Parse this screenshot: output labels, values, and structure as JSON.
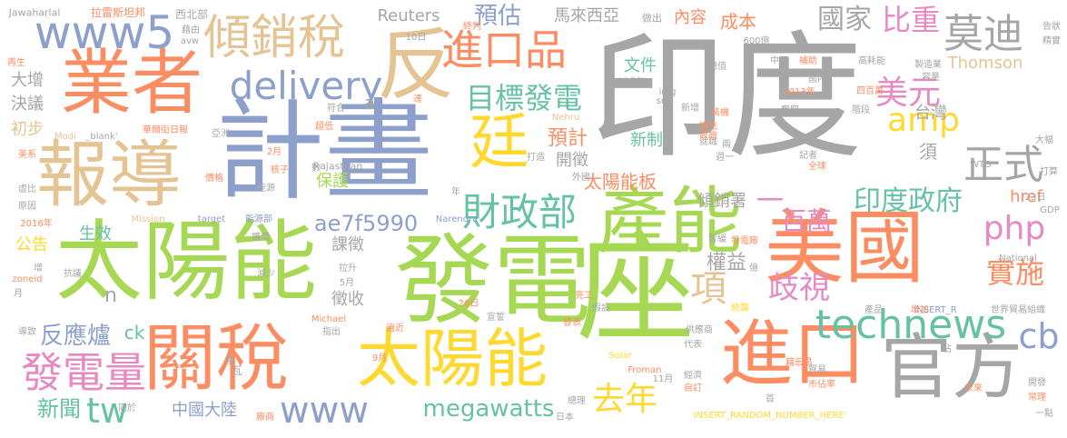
{
  "palette": {
    "gray": "#a6a6a6",
    "blue": "#8da0cb",
    "orange": "#fc8d62",
    "green": "#a6d854",
    "yellow": "#ffd92f",
    "tan": "#e5c494",
    "pink": "#e78ac3",
    "teal": "#66c2a5"
  },
  "words": [
    {
      "text": "印度",
      "color": "gray"
    },
    {
      "text": "計畫",
      "color": "blue"
    },
    {
      "text": "發電",
      "color": "green"
    },
    {
      "text": "太陽能",
      "color": "green"
    },
    {
      "text": "座",
      "color": "green"
    },
    {
      "text": "產能",
      "color": "green"
    },
    {
      "text": "美國",
      "color": "orange"
    },
    {
      "text": "業者",
      "color": "orange"
    },
    {
      "text": "報導",
      "color": "tan"
    },
    {
      "text": "反",
      "color": "tan"
    },
    {
      "text": "關稅",
      "color": "orange"
    },
    {
      "text": "太陽能",
      "color": "yellow"
    },
    {
      "text": "進口",
      "color": "orange"
    },
    {
      "text": "官方",
      "color": "gray"
    },
    {
      "text": "廷",
      "color": "yellow"
    },
    {
      "text": "www5",
      "color": "blue"
    },
    {
      "text": "傾銷稅",
      "color": "tan"
    },
    {
      "text": "進口品",
      "color": "orange"
    },
    {
      "text": "delivery",
      "color": "blue"
    },
    {
      "text": "目標發電",
      "color": "teal"
    },
    {
      "text": "財政部",
      "color": "teal"
    },
    {
      "text": "technews",
      "color": "teal"
    },
    {
      "text": "www",
      "color": "blue"
    },
    {
      "text": "發電量",
      "color": "pink"
    },
    {
      "text": "tw",
      "color": "teal"
    },
    {
      "text": "比重",
      "color": "pink"
    },
    {
      "text": "莫迪",
      "color": "gray"
    },
    {
      "text": "美元",
      "color": "pink"
    },
    {
      "text": "amp",
      "color": "yellow"
    },
    {
      "text": "正式",
      "color": "gray"
    },
    {
      "text": "php",
      "color": "pink"
    },
    {
      "text": "實施",
      "color": "orange"
    },
    {
      "text": "cb",
      "color": "blue"
    },
    {
      "text": "去年",
      "color": "yellow"
    },
    {
      "text": "歧視",
      "color": "pink"
    },
    {
      "text": "印度政府",
      "color": "teal"
    },
    {
      "text": "百萬",
      "color": "pink"
    },
    {
      "text": "預估",
      "color": "blue"
    },
    {
      "text": "國家",
      "color": "gray"
    },
    {
      "text": "megawatts",
      "color": "teal"
    },
    {
      "text": "ae7f5990",
      "color": "blue"
    },
    {
      "text": "項",
      "color": "tan"
    },
    {
      "text": "反應爐",
      "color": "blue"
    },
    {
      "text": "新聞",
      "color": "teal"
    },
    {
      "text": "預計",
      "color": "orange"
    },
    {
      "text": "太陽能板",
      "color": "orange"
    },
    {
      "text": "權益",
      "color": "gray"
    },
    {
      "text": "馬來西亞",
      "color": "gray"
    },
    {
      "text": "Reuters",
      "color": "gray"
    },
    {
      "text": "大增",
      "color": "gray"
    },
    {
      "text": "決議",
      "color": "gray"
    },
    {
      "text": "初步",
      "color": "tan"
    },
    {
      "text": "文件",
      "color": "teal"
    },
    {
      "text": "開徵",
      "color": "gray"
    },
    {
      "text": "新制",
      "color": "teal"
    },
    {
      "text": "傾銷署",
      "color": "gray"
    },
    {
      "text": "台灣",
      "color": "gray"
    },
    {
      "text": "成本",
      "color": "orange"
    },
    {
      "text": "內容",
      "color": "orange"
    },
    {
      "text": "Thomson",
      "color": "tan"
    },
    {
      "text": "課徵",
      "color": "gray"
    },
    {
      "text": "徵收",
      "color": "gray"
    },
    {
      "text": "保護",
      "color": "green"
    },
    {
      "text": "生效",
      "color": "teal"
    },
    {
      "text": "公告",
      "color": "yellow"
    },
    {
      "text": "href",
      "color": "orange"
    },
    {
      "text": "ck",
      "color": "teal"
    },
    {
      "text": "n",
      "color": "gray"
    },
    {
      "text": "中國大陸",
      "color": "blue"
    },
    {
      "text": "一",
      "color": "pink"
    },
    {
      "text": "須",
      "color": "gray"
    },
    {
      "text": "a",
      "color": "gray"
    }
  ],
  "small_words": [
    "Jawaharlal",
    "拉雷斯坦邦",
    "西北部",
    "終判",
    "做出",
    "告狀",
    "精實",
    "10日",
    "2025年",
    "Rajasthan",
    "Nehru",
    "Modi",
    "_blank'",
    "華爾街日報",
    "美系",
    "亞洲",
    "核子",
    "能源",
    "虛比",
    "原因",
    "價格",
    "2016年",
    "Mission",
    "target",
    "能源部",
    "Narendra",
    "擴增",
    "暫緩",
    "發電廠",
    "抗議",
    "zoneid",
    "導致",
    "Michael",
    "指出",
    "遍近",
    "宣誓",
    "減少",
    "5月",
    "9月",
    "2月",
    "拉升",
    "26日",
    "完工",
    "假設",
    "發表",
    "Solar",
    "Froman",
    "11月",
    "代表",
    "經濟",
    "自訂",
    "首",
    "總理",
    "日本",
    "廠商",
    "INSERT_RANDOM_NUMBER_HERE'",
    "一點",
    "開發",
    "常理",
    "未來",
    "世界貿易組織",
    "INSERT_R",
    "產品",
    "增加",
    "National",
    "GDP",
    "23日",
    "WTO",
    "打算",
    "大幅",
    "全球",
    "記者",
    "擴充",
    "就職",
    "裝機",
    "籍宏昌",
    "供應商",
    "貿易",
    "市佔率",
    "600億",
    "img",
    "src",
    "新增",
    "2013年",
    "補助",
    "高耗能",
    "製造業",
    "容量",
    "四百萬",
    "國內",
    "階段",
    "奪取",
    "總值",
    "中國",
    "avw",
    "瓦",
    "年",
    "數",
    "符合",
    "超低",
    "外國",
    "打造",
    "達",
    "藉由",
    "再生",
    "增",
    "僅",
    "月",
    "同於",
    "週一",
    "設施",
    "兩",
    "億",
    "統籌",
    "佔"
  ]
}
